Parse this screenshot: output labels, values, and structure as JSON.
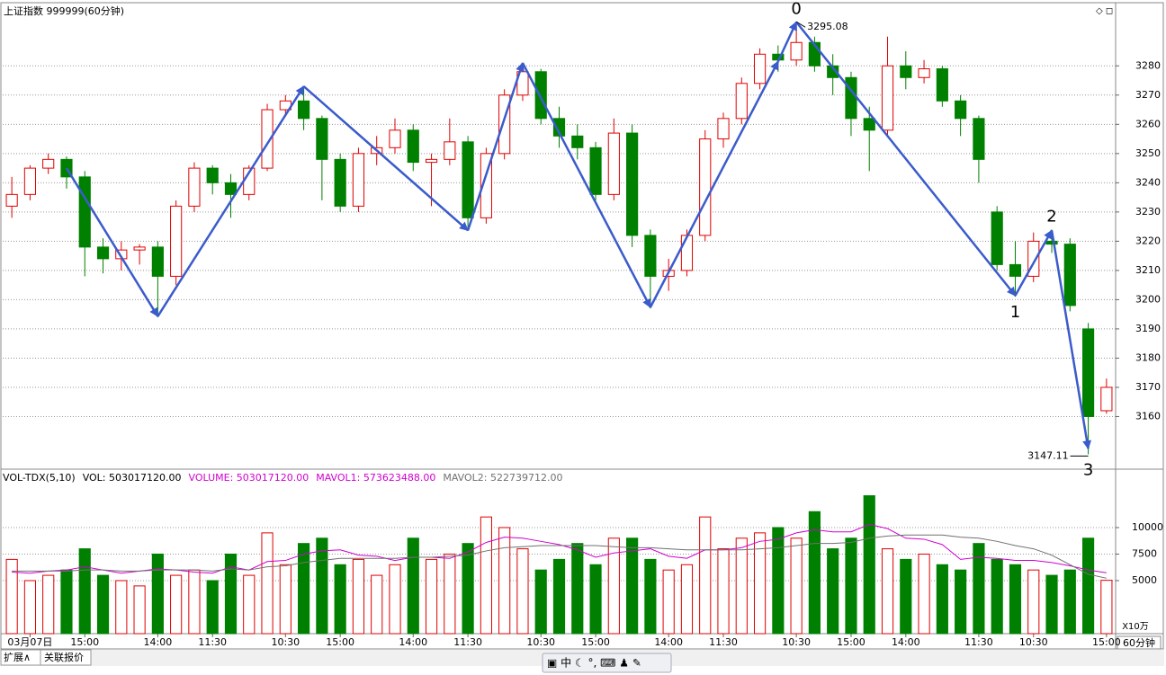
{
  "chart_data": {
    "type": "candlestick",
    "title": "上证指数 999999(60分钟)",
    "up_color": "#e00000",
    "down_color": "#008000",
    "zigzag_color": "#3b5bcc",
    "ylim": [
      3142,
      3301
    ],
    "yticks": [
      3160,
      3170,
      3180,
      3190,
      3200,
      3210,
      3220,
      3230,
      3240,
      3250,
      3260,
      3270,
      3280
    ],
    "grid": true,
    "xticks": [
      {
        "value": 1,
        "label": "03月07日"
      },
      {
        "value": 4,
        "label": "15:00"
      },
      {
        "value": 8,
        "label": "14:00"
      },
      {
        "value": 11,
        "label": "11:30"
      },
      {
        "value": 15,
        "label": "10:30"
      },
      {
        "value": 18,
        "label": "15:00"
      },
      {
        "value": 22,
        "label": "14:00"
      },
      {
        "value": 25,
        "label": "11:30"
      },
      {
        "value": 29,
        "label": "10:30"
      },
      {
        "value": 32,
        "label": "15:00"
      },
      {
        "value": 36,
        "label": "14:00"
      },
      {
        "value": 39,
        "label": "11:30"
      },
      {
        "value": 43,
        "label": "10:30"
      },
      {
        "value": 46,
        "label": "15:00"
      },
      {
        "value": 49,
        "label": "14:00"
      },
      {
        "value": 53,
        "label": "11:30"
      },
      {
        "value": 56,
        "label": "10:30"
      },
      {
        "value": 60,
        "label": "15:00"
      }
    ],
    "open": [
      3232,
      3236,
      3245,
      3248,
      3242,
      3218,
      3214,
      3217,
      3218,
      3208,
      3232,
      3245,
      3240,
      3236,
      3245,
      3265,
      3268,
      3262,
      3248,
      3232,
      3250,
      3252,
      3258,
      3247,
      3248,
      3254,
      3228,
      3250,
      3270,
      3278,
      3262,
      3256,
      3252,
      3236,
      3257,
      3222,
      3208,
      3210,
      3222,
      3255,
      3262,
      3274,
      3284,
      3282,
      3288,
      3280,
      3276,
      3262,
      3258,
      3280,
      3276,
      3279,
      3268,
      3262,
      3230,
      3212,
      3208,
      3220,
      3219,
      3190,
      3162
    ],
    "high": [
      3242,
      3246,
      3250,
      3249,
      3244,
      3221,
      3220,
      3219,
      3220,
      3234,
      3247,
      3246,
      3243,
      3246,
      3267,
      3270,
      3273,
      3263,
      3250,
      3252,
      3256,
      3262,
      3260,
      3250,
      3262,
      3256,
      3252,
      3272,
      3281,
      3279,
      3266,
      3260,
      3254,
      3262,
      3260,
      3224,
      3214,
      3224,
      3258,
      3264,
      3276,
      3286,
      3287,
      3295.08,
      3290,
      3284,
      3278,
      3266,
      3290,
      3285,
      3282,
      3280,
      3270,
      3263,
      3232,
      3220,
      3223,
      3224,
      3221,
      3192,
      3173
    ],
    "low": [
      3228,
      3234,
      3243,
      3238,
      3208,
      3209,
      3210,
      3212,
      3194,
      3205,
      3230,
      3236,
      3228,
      3234,
      3244,
      3263,
      3258,
      3234,
      3230,
      3230,
      3246,
      3250,
      3244,
      3232,
      3246,
      3224,
      3226,
      3248,
      3268,
      3260,
      3252,
      3248,
      3234,
      3234,
      3218,
      3197,
      3203,
      3208,
      3220,
      3252,
      3260,
      3272,
      3278,
      3280,
      3278,
      3270,
      3256,
      3244,
      3256,
      3272,
      3274,
      3266,
      3256,
      3240,
      3210,
      3201,
      3206,
      3216,
      3196,
      3147.11,
      3161
    ],
    "close": [
      3236,
      3245,
      3248,
      3242,
      3218,
      3214,
      3217,
      3218,
      3208,
      3232,
      3245,
      3240,
      3236,
      3245,
      3265,
      3268,
      3262,
      3248,
      3232,
      3250,
      3252,
      3258,
      3247,
      3248,
      3254,
      3228,
      3250,
      3270,
      3278,
      3262,
      3256,
      3252,
      3236,
      3257,
      3222,
      3208,
      3210,
      3222,
      3255,
      3262,
      3274,
      3284,
      3282,
      3288,
      3280,
      3276,
      3262,
      3258,
      3280,
      3276,
      3279,
      3268,
      3262,
      3248,
      3212,
      3208,
      3220,
      3219,
      3198,
      3160,
      3170
    ],
    "zigzag": {
      "x": [
        3,
        8,
        16,
        25,
        28,
        35,
        42,
        43,
        55,
        57,
        59
      ],
      "y": [
        3245,
        3194.3,
        3273,
        3223.7,
        3281,
        3197.4,
        3281.5,
        3295,
        3201.4,
        3223.7,
        3149
      ]
    },
    "wave_labels": [
      {
        "text": "0",
        "x": 43
      },
      {
        "text": "1",
        "x": 55
      },
      {
        "text": "2",
        "x": 57
      },
      {
        "text": "3",
        "x": 59
      }
    ],
    "volume_panel": {
      "header": [
        "VOL-TDX(5,10)",
        "VOL: 503017120.00",
        "VOLUME: 503017120.00",
        "MAVOL1: 573623488.00",
        "MAVOL2: 522739712.00"
      ],
      "unit": "X10万",
      "ylim": [
        0,
        15250
      ],
      "yticks": [
        5000,
        7500,
        10000
      ],
      "volume": [
        7000,
        5000,
        5500,
        6000,
        8000,
        5500,
        5000,
        4500,
        7500,
        5500,
        6000,
        5000,
        7500,
        5500,
        9500,
        6500,
        8500,
        9000,
        6500,
        7000,
        5500,
        6500,
        9000,
        7000,
        7500,
        8500,
        11000,
        10000,
        8000,
        6000,
        7000,
        8500,
        6500,
        9000,
        9000,
        7000,
        6000,
        6500,
        11000,
        8000,
        9000,
        9500,
        10000,
        9000,
        11500,
        8000,
        9000,
        13000,
        8000,
        7000,
        7500,
        6500,
        6000,
        8500,
        7000,
        6500,
        6000,
        5500,
        6000,
        9000,
        5030
      ],
      "series": [
        {
          "name": "MAVOL1",
          "color": "#d000d0",
          "values": [
            5800,
            5700,
            5900,
            6000,
            6300,
            6000,
            5700,
            5900,
            6100,
            6000,
            5800,
            5700,
            6300,
            6000,
            6800,
            6900,
            7500,
            7800,
            7900,
            7400,
            7300,
            6900,
            7200,
            7200,
            7100,
            7700,
            8600,
            9100,
            9000,
            8700,
            8400,
            7900,
            7200,
            7600,
            7800,
            8000,
            7300,
            7100,
            7900,
            7900,
            8100,
            8700,
            8900,
            9500,
            9800,
            9600,
            9600,
            10300,
            9900,
            9000,
            8900,
            8400,
            7000,
            7200,
            7100,
            6900,
            6900,
            6700,
            6400,
            6000,
            5736
          ]
        },
        {
          "name": "MAVOL2",
          "color": "#707070",
          "values": [
            5900,
            5900,
            5900,
            5900,
            6000,
            6000,
            5900,
            5900,
            6000,
            6000,
            6000,
            5900,
            6100,
            6000,
            6300,
            6400,
            6700,
            6900,
            7100,
            7100,
            7100,
            7100,
            7200,
            7200,
            7300,
            7400,
            7800,
            8100,
            8200,
            8300,
            8300,
            8300,
            8300,
            8200,
            8100,
            8100,
            8000,
            7900,
            7900,
            7900,
            7900,
            8000,
            8100,
            8300,
            8500,
            8500,
            8600,
            9000,
            9200,
            9300,
            9300,
            9300,
            9100,
            9000,
            8700,
            8300,
            8000,
            7400,
            6500,
            5600,
            5227
          ]
        }
      ]
    },
    "period": "60分钟",
    "tabs": [
      "扩展∧",
      "关联报价"
    ]
  }
}
